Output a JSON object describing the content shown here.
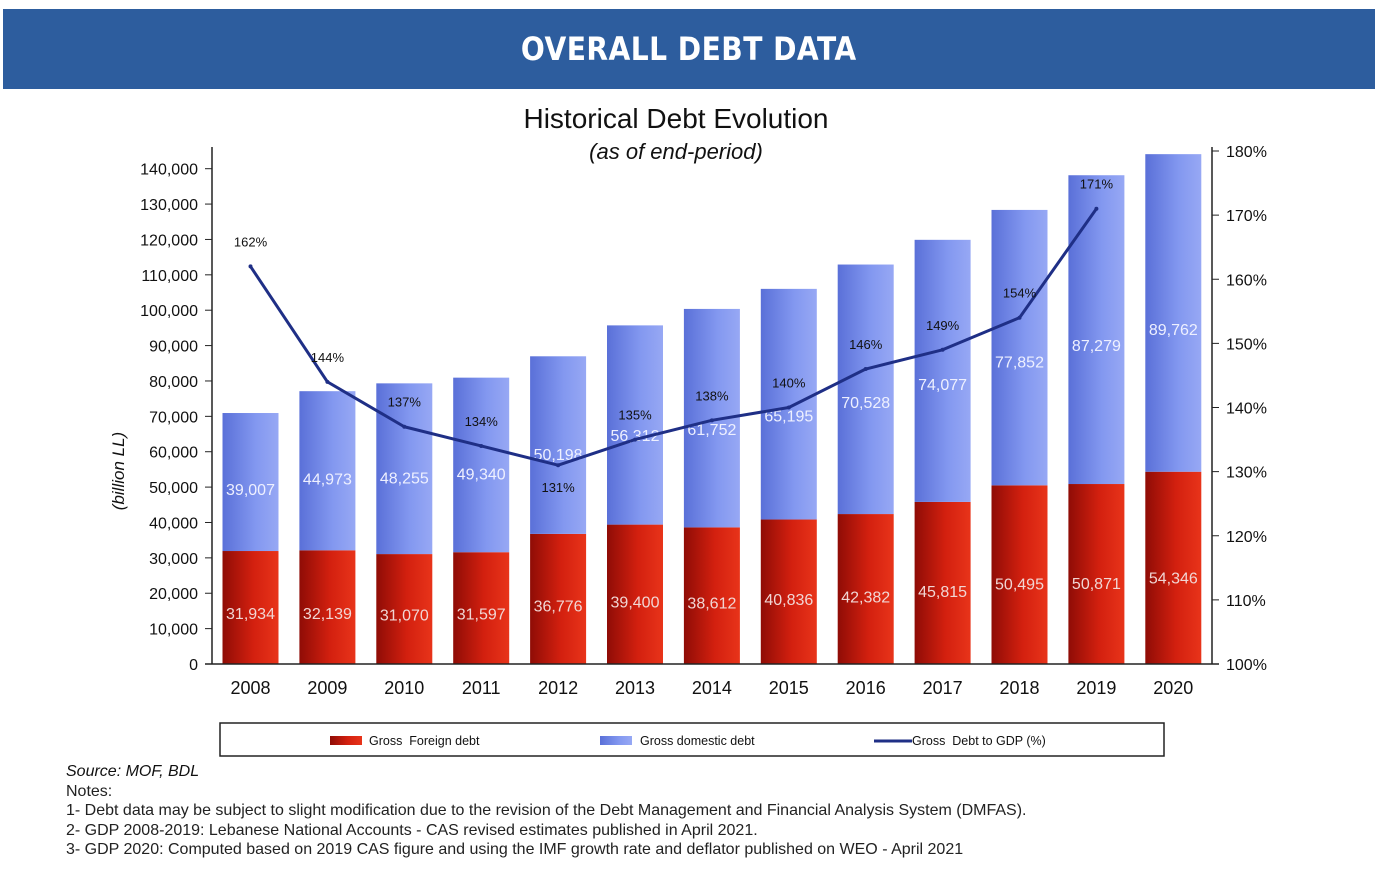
{
  "banner": {
    "title": "OVERALL DEBT DATA"
  },
  "chart_data": {
    "type": "bar",
    "stacked": true,
    "title": "Historical Debt Evolution",
    "subtitle": "(as of end-period)",
    "ylabel": "(billion LL)",
    "categories": [
      "2008",
      "2009",
      "2010",
      "2011",
      "2012",
      "2013",
      "2014",
      "2015",
      "2016",
      "2017",
      "2018",
      "2019",
      "2020"
    ],
    "ylim": [
      0,
      145000
    ],
    "yticks": [
      0,
      10000,
      20000,
      30000,
      40000,
      50000,
      60000,
      70000,
      80000,
      90000,
      100000,
      110000,
      120000,
      130000,
      140000
    ],
    "ytick_labels": [
      "0",
      "10,000",
      "20,000",
      "30,000",
      "40,000",
      "50,000",
      "60,000",
      "70,000",
      "80,000",
      "90,000",
      "100,000",
      "110,000",
      "120,000",
      "130,000",
      "140,000"
    ],
    "y2lim": [
      100,
      180
    ],
    "y2ticks": [
      100,
      110,
      120,
      130,
      140,
      150,
      160,
      170,
      180
    ],
    "y2tick_labels": [
      "100%",
      "110%",
      "120%",
      "130%",
      "140%",
      "150%",
      "160%",
      "170%",
      "180%"
    ],
    "series": [
      {
        "name": "Gross  Foreign debt",
        "kind": "bar",
        "color": "#c0180f",
        "values": [
          31934,
          32139,
          31070,
          31597,
          36776,
          39400,
          38612,
          40836,
          42382,
          45815,
          50495,
          50871,
          54346
        ],
        "labels": [
          "31,934",
          "32,139",
          "31,070",
          "31,597",
          "36,776",
          "39,400",
          "38,612",
          "40,836",
          "42,382",
          "45,815",
          "50,495",
          "50,871",
          "54,346"
        ]
      },
      {
        "name": "Gross domestic debt",
        "kind": "bar",
        "color": "#6e86e6",
        "values": [
          39007,
          44973,
          48255,
          49340,
          50198,
          56312,
          61752,
          65195,
          70528,
          74077,
          77852,
          87279,
          89762
        ],
        "labels": [
          "39,007",
          "44,973",
          "48,255",
          "49,340",
          "50,198",
          "56,312",
          "61,752",
          "65,195",
          "70,528",
          "74,077",
          "77,852",
          "87,279",
          "89,762"
        ]
      },
      {
        "name": "Gross  Debt to GDP (%)",
        "kind": "line",
        "axis": "right",
        "color": "#1f2f86",
        "values": [
          162,
          144,
          137,
          134,
          131,
          135,
          138,
          140,
          146,
          149,
          154,
          171,
          null
        ],
        "labels": [
          "162%",
          "144%",
          "137%",
          "134%",
          "131%",
          "135%",
          "138%",
          "140%",
          "146%",
          "149%",
          "154%",
          "171%",
          ""
        ]
      }
    ],
    "legend_position": "bottom"
  },
  "notes": {
    "source": "Source: MOF, BDL",
    "heading": "Notes:",
    "items": [
      "1- Debt data may be subject to slight modification due to the revision of the Debt Management and Financial Analysis System (DMFAS).",
      "2- GDP 2008-2019: Lebanese National Accounts - CAS revised estimates published in April 2021.",
      "3- GDP 2020: Computed based on 2019 CAS figure and using the IMF growth rate and deflator published on WEO - April 2021"
    ]
  }
}
